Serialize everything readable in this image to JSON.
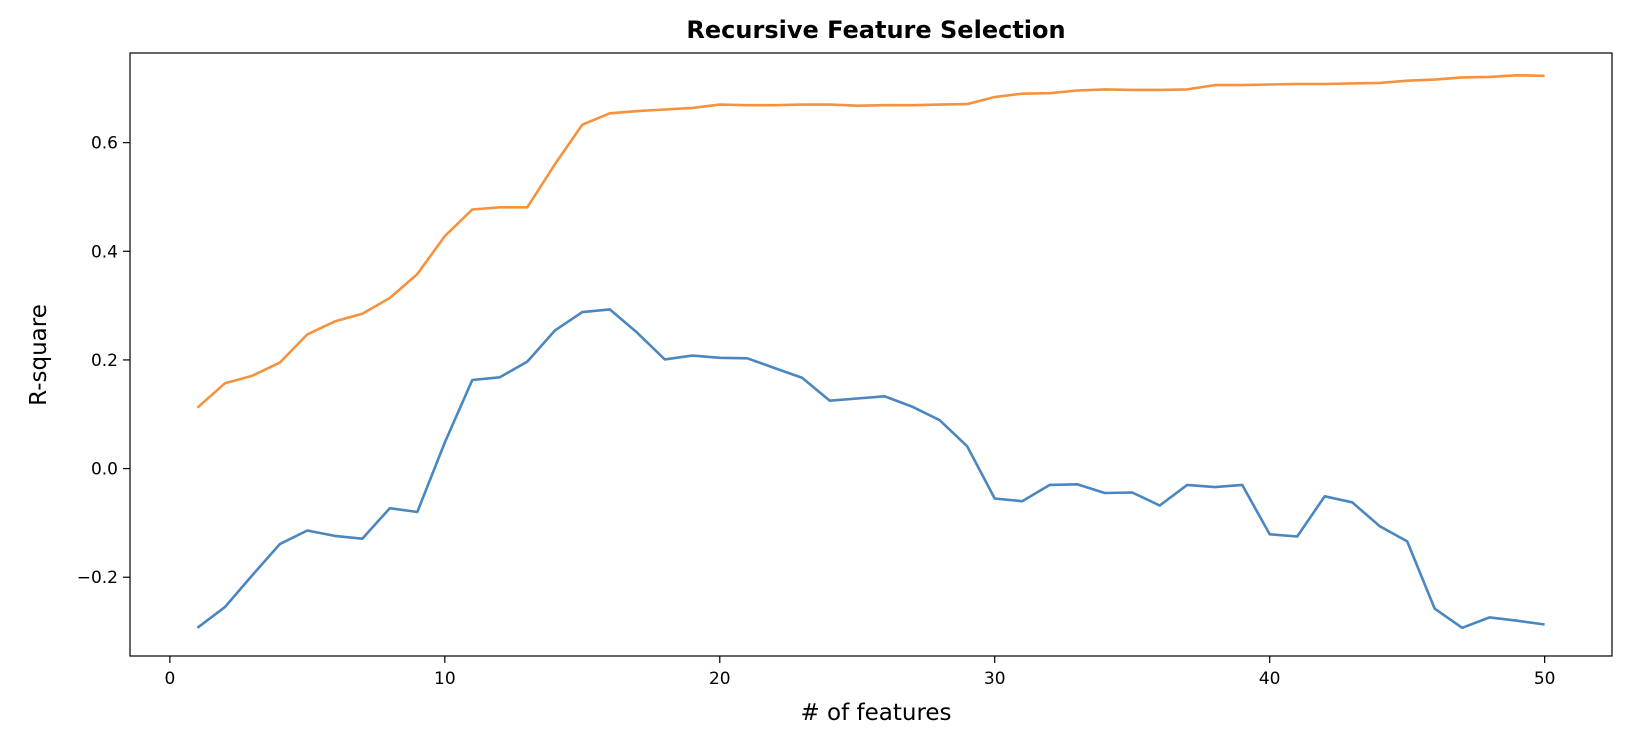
{
  "chart_data": {
    "type": "line",
    "title": "Recursive Feature Selection",
    "xlabel": "# of features",
    "ylabel": "R-square",
    "xlim": [
      -1.45,
      52.45
    ],
    "ylim": [
      -0.345,
      0.765
    ],
    "xticks": [
      0,
      10,
      20,
      30,
      40,
      50
    ],
    "xtick_labels": [
      "0",
      "10",
      "20",
      "30",
      "40",
      "50"
    ],
    "yticks": [
      -0.2,
      0.0,
      0.2,
      0.4,
      0.6
    ],
    "ytick_labels": [
      "−0.2",
      "0.0",
      "0.2",
      "0.4",
      "0.6"
    ],
    "grid": false,
    "x": [
      1,
      2,
      3,
      4,
      5,
      6,
      7,
      8,
      9,
      10,
      11,
      12,
      13,
      14,
      15,
      16,
      17,
      18,
      19,
      20,
      21,
      22,
      23,
      24,
      25,
      26,
      27,
      28,
      29,
      30,
      31,
      32,
      33,
      34,
      35,
      36,
      37,
      38,
      39,
      40,
      41,
      42,
      43,
      44,
      45,
      46,
      47,
      48,
      49,
      50
    ],
    "series": [
      {
        "color": "#4a86c0",
        "values": [
          -0.293,
          -0.255,
          -0.196,
          -0.139,
          -0.114,
          -0.124,
          -0.129,
          -0.073,
          -0.08,
          0.048,
          0.163,
          0.168,
          0.197,
          0.254,
          0.288,
          0.293,
          0.25,
          0.201,
          0.208,
          0.204,
          0.203,
          0.185,
          0.167,
          0.125,
          0.129,
          0.133,
          0.114,
          0.089,
          0.041,
          -0.055,
          -0.06,
          -0.03,
          -0.029,
          -0.045,
          -0.044,
          -0.068,
          -0.03,
          -0.034,
          -0.03,
          -0.121,
          -0.125,
          -0.051,
          -0.062,
          -0.106,
          -0.134,
          -0.258,
          -0.293,
          -0.274,
          -0.28,
          -0.287
        ]
      },
      {
        "color": "#f5923e",
        "values": [
          0.112,
          0.157,
          0.171,
          0.195,
          0.247,
          0.271,
          0.285,
          0.314,
          0.358,
          0.428,
          0.477,
          0.481,
          0.481,
          0.56,
          0.633,
          0.654,
          0.658,
          0.661,
          0.664,
          0.67,
          0.669,
          0.669,
          0.67,
          0.67,
          0.668,
          0.669,
          0.669,
          0.67,
          0.671,
          0.684,
          0.69,
          0.691,
          0.696,
          0.698,
          0.697,
          0.697,
          0.698,
          0.706,
          0.706,
          0.707,
          0.708,
          0.708,
          0.709,
          0.71,
          0.714,
          0.716,
          0.72,
          0.721,
          0.724,
          0.723
        ]
      }
    ]
  }
}
